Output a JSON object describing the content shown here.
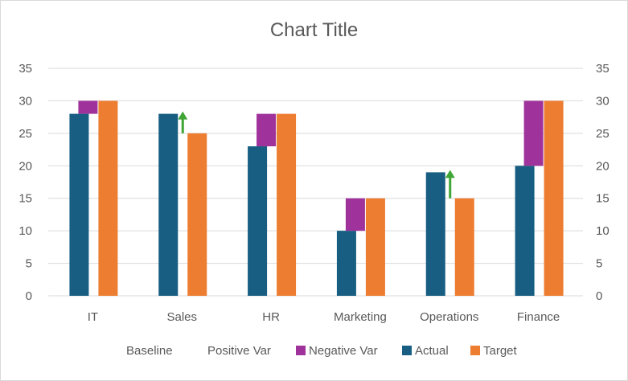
{
  "chart_data": {
    "type": "bar",
    "title": "Chart Title",
    "categories": [
      "IT",
      "Sales",
      "HR",
      "Marketing",
      "Operations",
      "Finance"
    ],
    "ylim": [
      0,
      35
    ],
    "yticks": [
      0,
      5,
      10,
      15,
      20,
      25,
      30,
      35
    ],
    "secondary_axis": true,
    "grid": true,
    "legend_position": "bottom",
    "series": [
      {
        "name": "Baseline",
        "values": [
          28,
          25,
          23,
          10,
          15,
          20
        ],
        "color": "none",
        "stacked_with": "Negative Var"
      },
      {
        "name": "Positive Var",
        "values": [
          0,
          3,
          0,
          0,
          4,
          0
        ],
        "color": "#3fa535",
        "marker": "up-arrow"
      },
      {
        "name": "Negative Var",
        "values": [
          2,
          0,
          5,
          5,
          0,
          10
        ],
        "color": "#a0329c"
      },
      {
        "name": "Actual",
        "values": [
          28,
          28,
          23,
          10,
          19,
          20
        ],
        "color": "#175e82"
      },
      {
        "name": "Target",
        "values": [
          30,
          25,
          28,
          15,
          15,
          30
        ],
        "color": "#ed7d31"
      }
    ]
  }
}
